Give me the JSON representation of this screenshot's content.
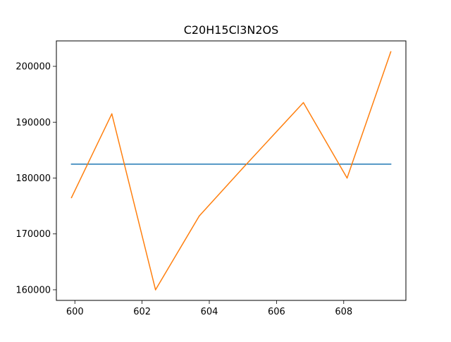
{
  "chart_data": {
    "type": "line",
    "title": "C20H15Cl3N2OS",
    "xlabel": "",
    "ylabel": "",
    "xlim": [
      599.45,
      609.85
    ],
    "ylim": [
      158100,
      204550
    ],
    "xticks": [
      600,
      602,
      604,
      606,
      608
    ],
    "yticks": [
      160000,
      170000,
      180000,
      190000,
      200000
    ],
    "xtick_labels": [
      "600",
      "602",
      "604",
      "606",
      "608"
    ],
    "ytick_labels": [
      "160000",
      "170000",
      "180000",
      "190000",
      "200000"
    ],
    "grid": false,
    "series": [
      {
        "color": "#1f77b4",
        "x": [
          599.9,
          609.4
        ],
        "y": [
          182500,
          182500
        ]
      },
      {
        "color": "#ff7f0e",
        "x": [
          599.9,
          601.1,
          602.4,
          603.7,
          605.0,
          606.8,
          608.1,
          609.4
        ],
        "y": [
          176500,
          191500,
          160000,
          173200,
          181800,
          193500,
          180000,
          202600
        ]
      }
    ]
  }
}
